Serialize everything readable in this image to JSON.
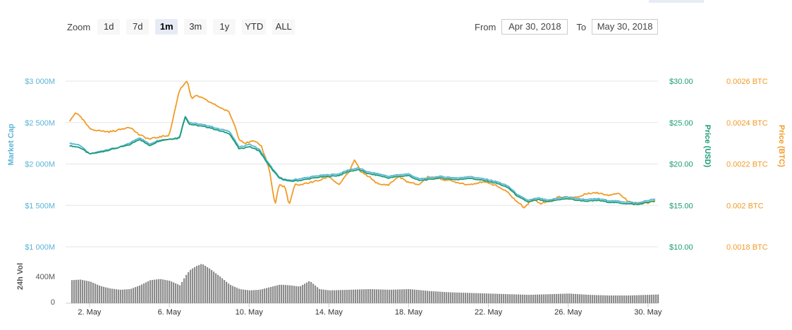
{
  "zoom": {
    "label": "Zoom",
    "buttons": [
      {
        "label": "1d",
        "active": false
      },
      {
        "label": "7d",
        "active": false
      },
      {
        "label": "1m",
        "active": true
      },
      {
        "label": "3m",
        "active": false
      },
      {
        "label": "1y",
        "active": false
      },
      {
        "label": "YTD",
        "active": false
      },
      {
        "label": "ALL",
        "active": false
      }
    ]
  },
  "range": {
    "from_label": "From",
    "from_value": "Apr 30, 2018",
    "to_label": "To",
    "to_value": "May 30, 2018"
  },
  "colors": {
    "market_cap": "#5bb4d6",
    "price_usd": "#1a9c75",
    "price_btc": "#f39a26",
    "volume": "#8c8c8c",
    "grid": "#e6e6e6"
  },
  "chart_data": {
    "type": "line",
    "x_ticks": [
      "2. May",
      "6. May",
      "10. May",
      "14. May",
      "18. May",
      "22. May",
      "26. May",
      "30. May"
    ],
    "x_tick_days": [
      2,
      6,
      10,
      14,
      18,
      22,
      26,
      30
    ],
    "xlim": [
      0.8,
      30.5
    ],
    "axes": {
      "market_cap": {
        "label": "Market Cap",
        "ticks": [
          "$3 000M",
          "$2 500M",
          "$2 000M",
          "$1 500M",
          "$1 000M"
        ],
        "ylim": [
          1000,
          3000
        ],
        "unit": "M USD"
      },
      "price_usd": {
        "label": "Price (USD)",
        "ticks": [
          "$30.00",
          "$25.00",
          "$20.00",
          "$15.00",
          "$10.00"
        ],
        "ylim": [
          10,
          30
        ]
      },
      "price_btc": {
        "label": "Price (BTC)",
        "ticks": [
          "0.0026 BTC",
          "0.0024 BTC",
          "0.0022 BTC",
          "0.002 BTC",
          "0.0018 BTC"
        ],
        "ylim": [
          0.0018,
          0.0026
        ]
      },
      "volume": {
        "label": "24h Vol",
        "ticks": [
          "400M",
          "0"
        ],
        "ylim": [
          0,
          800
        ]
      }
    },
    "series": [
      {
        "name": "Market Cap",
        "axis": "market_cap",
        "x": [
          1,
          1.5,
          2,
          2.5,
          3,
          3.5,
          4,
          4.5,
          5,
          5.5,
          6,
          6.5,
          6.8,
          7,
          7.5,
          8,
          8.5,
          9,
          9.5,
          10,
          10.5,
          11,
          11.5,
          12,
          12.5,
          13,
          13.5,
          14,
          14.5,
          15,
          15.5,
          16,
          16.5,
          17,
          17.5,
          18,
          18.5,
          19,
          19.5,
          20,
          20.5,
          21,
          21.5,
          22,
          22.5,
          23,
          23.5,
          24,
          24.5,
          25,
          25.5,
          26,
          26.5,
          27,
          27.5,
          28,
          28.5,
          29,
          29.5,
          30,
          30.4
        ],
        "values": [
          2250,
          2230,
          2120,
          2150,
          2180,
          2200,
          2250,
          2320,
          2240,
          2290,
          2300,
          2320,
          2580,
          2500,
          2480,
          2460,
          2420,
          2400,
          2200,
          2240,
          2180,
          2000,
          1840,
          1800,
          1820,
          1840,
          1860,
          1870,
          1880,
          1930,
          1950,
          1900,
          1880,
          1850,
          1870,
          1880,
          1820,
          1830,
          1850,
          1840,
          1830,
          1850,
          1830,
          1810,
          1780,
          1730,
          1620,
          1560,
          1590,
          1560,
          1590,
          1600,
          1580,
          1570,
          1580,
          1560,
          1550,
          1540,
          1530,
          1560,
          1580
        ]
      },
      {
        "name": "Price (USD)",
        "axis": "price_usd",
        "x": [
          1,
          1.5,
          2,
          2.5,
          3,
          3.5,
          4,
          4.5,
          5,
          5.5,
          6,
          6.5,
          6.8,
          7,
          7.5,
          8,
          8.5,
          9,
          9.5,
          10,
          10.5,
          11,
          11.5,
          12,
          12.5,
          13,
          13.5,
          14,
          14.5,
          15,
          15.5,
          16,
          16.5,
          17,
          17.5,
          18,
          18.5,
          19,
          19.5,
          20,
          20.5,
          21,
          21.5,
          22,
          22.5,
          23,
          23.5,
          24,
          24.5,
          25,
          25.5,
          26,
          26.5,
          27,
          27.5,
          28,
          28.5,
          29,
          29.5,
          30,
          30.4
        ],
        "values": [
          22.2,
          22.0,
          21.2,
          21.4,
          21.7,
          22.0,
          22.3,
          23.0,
          22.2,
          22.8,
          23.0,
          23.1,
          25.7,
          24.8,
          24.6,
          24.4,
          24.0,
          23.7,
          21.8,
          22.1,
          21.6,
          19.8,
          18.3,
          17.9,
          18.0,
          18.2,
          18.4,
          18.5,
          18.6,
          19.1,
          19.3,
          18.8,
          18.6,
          18.3,
          18.5,
          18.6,
          18.0,
          18.1,
          18.3,
          18.2,
          18.1,
          18.3,
          18.1,
          17.9,
          17.6,
          17.1,
          16.0,
          15.4,
          15.7,
          15.4,
          15.7,
          15.8,
          15.6,
          15.5,
          15.6,
          15.4,
          15.3,
          15.2,
          15.1,
          15.4,
          15.5
        ]
      },
      {
        "name": "Price (BTC)",
        "axis": "price_btc",
        "x": [
          1,
          1.3,
          1.7,
          2,
          2.5,
          3,
          3.5,
          4,
          4.5,
          5,
          5.5,
          6,
          6.5,
          6.9,
          7.1,
          7.4,
          7.8,
          8.2,
          8.6,
          9,
          9.3,
          9.5,
          9.8,
          10.2,
          10.6,
          11,
          11.3,
          11.5,
          11.8,
          12,
          12.3,
          12.6,
          13,
          13.5,
          14,
          14.5,
          15,
          15.3,
          15.6,
          16,
          16.5,
          17,
          17.5,
          18,
          18.5,
          19,
          19.5,
          20,
          20.5,
          21,
          21.5,
          22,
          22.5,
          23,
          23.4,
          23.8,
          24.2,
          24.6,
          25,
          25.5,
          26,
          26.5,
          27,
          27.5,
          28,
          28.5,
          29,
          29.5,
          30,
          30.4
        ],
        "values": [
          0.002405,
          0.00245,
          0.00241,
          0.00237,
          0.00236,
          0.002355,
          0.002365,
          0.00238,
          0.00234,
          0.00232,
          0.00233,
          0.00234,
          0.002555,
          0.002605,
          0.002515,
          0.00253,
          0.00251,
          0.00249,
          0.00247,
          0.00245,
          0.00238,
          0.00232,
          0.0023,
          0.00231,
          0.00229,
          0.00218,
          0.002,
          0.0021,
          0.00209,
          0.002,
          0.0021,
          0.0021,
          0.00211,
          0.00212,
          0.00214,
          0.0021,
          0.00216,
          0.00222,
          0.00216,
          0.00214,
          0.0021,
          0.0021,
          0.00214,
          0.00211,
          0.0021,
          0.00214,
          0.00213,
          0.00212,
          0.00211,
          0.0021,
          0.00211,
          0.00211,
          0.00209,
          0.00206,
          0.00202,
          0.00199,
          0.00203,
          0.00201,
          0.00202,
          0.00204,
          0.00204,
          0.00204,
          0.00206,
          0.00206,
          0.00205,
          0.00206,
          0.00202,
          0.00201,
          0.00201,
          0.00203
        ]
      },
      {
        "name": "24h Vol",
        "axis": "volume",
        "x": [
          1,
          1.5,
          2,
          2.5,
          3,
          3.5,
          4,
          4.5,
          5,
          5.5,
          6,
          6.5,
          6.8,
          7,
          7.3,
          7.6,
          8,
          8.5,
          9,
          9.5,
          10,
          10.5,
          11,
          11.5,
          12,
          12.5,
          13,
          13.5,
          14,
          15,
          16,
          17,
          18,
          19,
          20,
          21,
          22,
          23,
          24,
          25,
          26,
          27,
          28,
          29,
          30,
          30.4
        ],
        "values": [
          340,
          350,
          320,
          250,
          210,
          190,
          200,
          260,
          340,
          360,
          330,
          260,
          420,
          500,
          560,
          600,
          520,
          400,
          270,
          200,
          180,
          190,
          230,
          270,
          260,
          240,
          330,
          200,
          180,
          190,
          200,
          190,
          200,
          170,
          150,
          140,
          130,
          120,
          110,
          120,
          130,
          110,
          100,
          100,
          110,
          115
        ]
      }
    ]
  }
}
